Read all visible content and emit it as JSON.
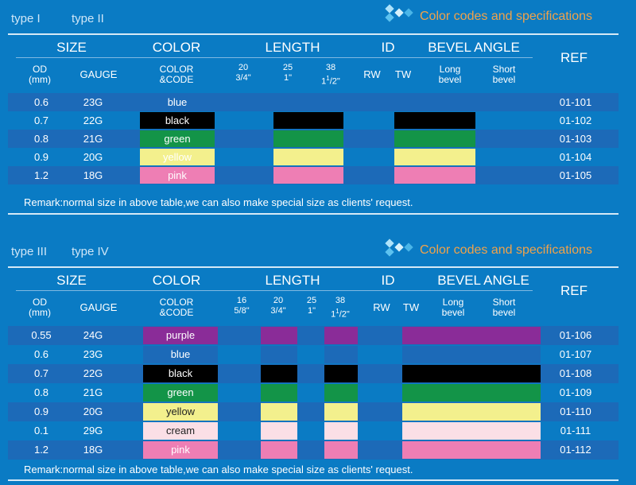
{
  "section_a": {
    "types": [
      "type I",
      "type II"
    ],
    "title": "Color codes and specifications",
    "headers": {
      "size": "SIZE",
      "color": "COLOR",
      "length": "LENGTH",
      "id": "ID",
      "bevel": "BEVEL ANGLE",
      "ref": "REF"
    },
    "sub": {
      "od": "OD",
      "od_unit": "(mm)",
      "gauge": "GAUGE",
      "color1": "COLOR",
      "color2": "&CODE",
      "len_cols": [
        {
          "mm": "20",
          "inch": "3/4\"",
          "whole": "",
          "sup": "",
          "frac": ""
        },
        {
          "mm": "25",
          "inch": "1\"",
          "whole": "",
          "sup": "",
          "frac": ""
        },
        {
          "mm": "38",
          "inch": "",
          "whole": "1",
          "sup": "1",
          "frac": "/2\""
        }
      ],
      "rw": "RW",
      "tw": "TW",
      "long1": "Long",
      "long2": "bevel",
      "short1": "Short",
      "short2": "bevel"
    },
    "rows": [
      {
        "od": "0.6",
        "gauge": "23G",
        "color": "blue",
        "ref": "01-101",
        "swatch": "#1c6ab8",
        "text_color": "#ffffff"
      },
      {
        "od": "0.7",
        "gauge": "22G",
        "color": "black",
        "ref": "01-102",
        "swatch": "#000000",
        "text_color": "#ffffff"
      },
      {
        "od": "0.8",
        "gauge": "21G",
        "color": "green",
        "ref": "01-103",
        "swatch": "#139448",
        "text_color": "#ffffff"
      },
      {
        "od": "0.9",
        "gauge": "20G",
        "color": "yellow",
        "ref": "01-104",
        "swatch": "#f3f08d",
        "text_color": "#ffffff"
      },
      {
        "od": "1.2",
        "gauge": "18G",
        "color": "pink",
        "ref": "01-105",
        "swatch": "#ee7eb4",
        "text_color": "#ffffff"
      }
    ],
    "remark": "Remark:normal size in above table,we can also make special size as clients' request."
  },
  "section_b": {
    "types": [
      "type III",
      "type IV"
    ],
    "title": "Color codes and specifications",
    "headers": {
      "size": "SIZE",
      "color": "COLOR",
      "length": "LENGTH",
      "id": "ID",
      "bevel": "BEVEL ANGLE",
      "ref": "REF"
    },
    "sub": {
      "od": "OD",
      "od_unit": "(mm)",
      "gauge": "GAUGE",
      "color1": "COLOR",
      "color2": "&CODE",
      "len_cols": [
        {
          "mm": "16",
          "inch": "5/8\"",
          "whole": "",
          "sup": "",
          "frac": ""
        },
        {
          "mm": "20",
          "inch": "3/4\"",
          "whole": "",
          "sup": "",
          "frac": ""
        },
        {
          "mm": "25",
          "inch": "1\"",
          "whole": "",
          "sup": "",
          "frac": ""
        },
        {
          "mm": "38",
          "inch": "",
          "whole": "1",
          "sup": "1",
          "frac": "/2\""
        }
      ],
      "rw": "RW",
      "tw": "TW",
      "long1": "Long",
      "long2": "bevel",
      "short1": "Short",
      "short2": "bevel"
    },
    "rows": [
      {
        "od": "0.55",
        "gauge": "24G",
        "color": "purple",
        "ref": "01-106",
        "swatch": "#8a2c98",
        "text_color": "#ffffff"
      },
      {
        "od": "0.6",
        "gauge": "23G",
        "color": "blue",
        "ref": "01-107",
        "swatch": "#1c6ab8",
        "text_color": "#ffffff"
      },
      {
        "od": "0.7",
        "gauge": "22G",
        "color": "black",
        "ref": "01-108",
        "swatch": "#000000",
        "text_color": "#ffffff"
      },
      {
        "od": "0.8",
        "gauge": "21G",
        "color": "green",
        "ref": "01-109",
        "swatch": "#139448",
        "text_color": "#ffffff"
      },
      {
        "od": "0.9",
        "gauge": "20G",
        "color": "yellow",
        "ref": "01-110",
        "swatch": "#f3f08d",
        "text_color": "#222222"
      },
      {
        "od": "0.1",
        "gauge": "29G",
        "color": "cream",
        "ref": "01-111",
        "swatch": "#fbdfe6",
        "text_color": "#222222"
      },
      {
        "od": "1.2",
        "gauge": "18G",
        "color": "pink",
        "ref": "01-112",
        "swatch": "#ee7eb4",
        "text_color": "#ffffff"
      }
    ],
    "remark": "Remark:normal size in above table,we can also make special size as clients' request."
  }
}
